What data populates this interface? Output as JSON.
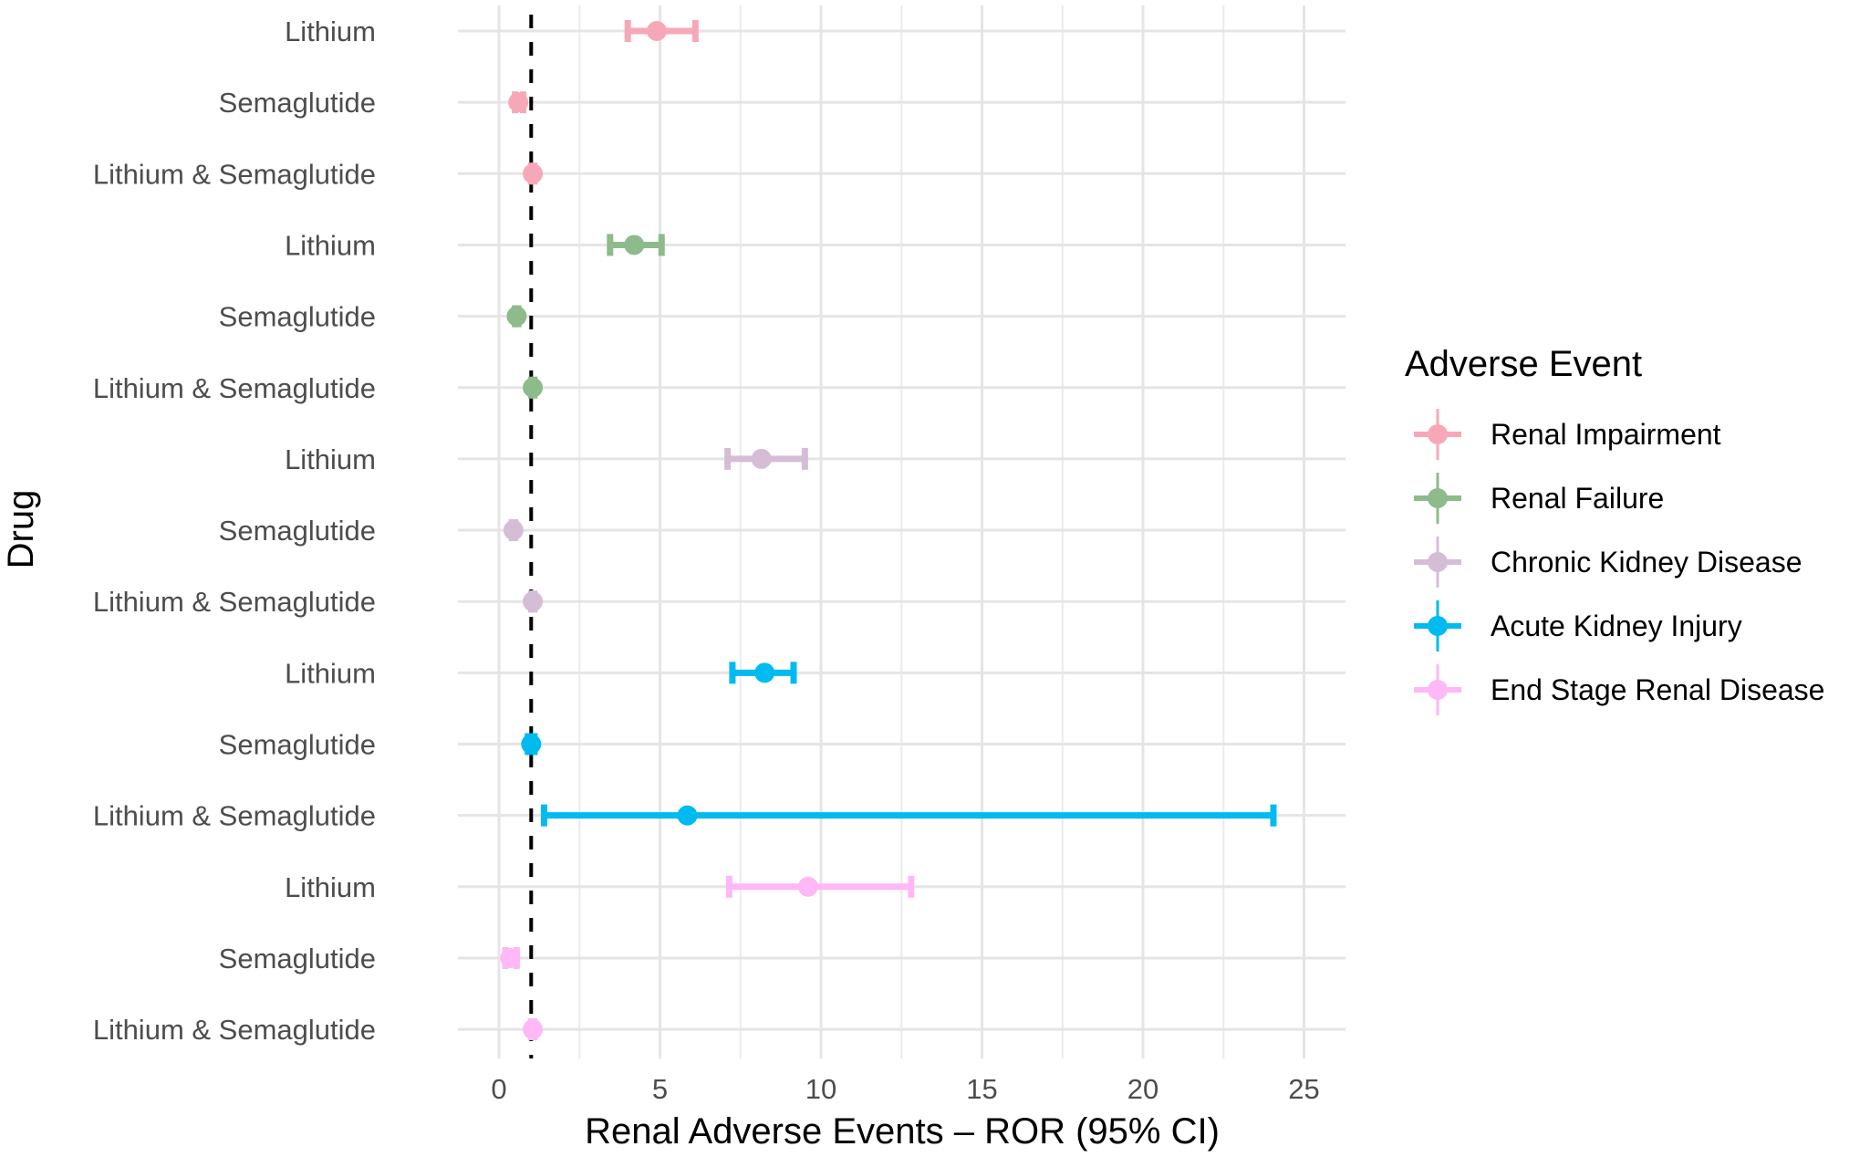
{
  "chart_data": {
    "type": "forest",
    "title": "",
    "xlabel": "Renal Adverse Events – ROR (95% CI)",
    "ylabel": "Drug",
    "xlim": [
      -1.3,
      26.3
    ],
    "xticks": [
      0,
      5,
      10,
      15,
      20,
      25
    ],
    "xtick_labels": [
      "0",
      "5",
      "10",
      "15",
      "20",
      "25"
    ],
    "reference_line": 1,
    "grid": true,
    "legend": {
      "title": "Adverse Event",
      "placement": "right",
      "entries": [
        "Renal Impairment",
        "Renal Failure",
        "Chronic Kidney Disease",
        "Acute Kidney Injury",
        "End Stage Renal Disease"
      ]
    },
    "colors": {
      "Renal Impairment": "#F7A8B8",
      "Renal Failure": "#8DBB8B",
      "Chronic Kidney Disease": "#D5BDD6",
      "Acute Kidney Injury": "#00BAF0",
      "End Stage Renal Disease": "#FDB8F5"
    },
    "rows": [
      {
        "drug": "Lithium",
        "event": "Renal Impairment",
        "ror": 4.9,
        "lower": 4.0,
        "upper": 6.1
      },
      {
        "drug": "Semaglutide",
        "event": "Renal Impairment",
        "ror": 0.6,
        "lower": 0.5,
        "upper": 0.75
      },
      {
        "drug": "Lithium & Semaglutide",
        "event": "Renal Impairment",
        "ror": 1.05,
        "lower": 1.0,
        "upper": 1.1
      },
      {
        "drug": "Lithium",
        "event": "Renal Failure",
        "ror": 4.2,
        "lower": 3.45,
        "upper": 5.05
      },
      {
        "drug": "Semaglutide",
        "event": "Renal Failure",
        "ror": 0.55,
        "lower": 0.5,
        "upper": 0.6
      },
      {
        "drug": "Lithium & Semaglutide",
        "event": "Renal Failure",
        "ror": 1.05,
        "lower": 1.0,
        "upper": 1.1
      },
      {
        "drug": "Lithium",
        "event": "Chronic Kidney Disease",
        "ror": 8.15,
        "lower": 7.1,
        "upper": 9.5
      },
      {
        "drug": "Semaglutide",
        "event": "Chronic Kidney Disease",
        "ror": 0.45,
        "lower": 0.4,
        "upper": 0.5
      },
      {
        "drug": "Lithium & Semaglutide",
        "event": "Chronic Kidney Disease",
        "ror": 1.05,
        "lower": 1.0,
        "upper": 1.1
      },
      {
        "drug": "Lithium",
        "event": "Acute Kidney Injury",
        "ror": 8.25,
        "lower": 7.25,
        "upper": 9.15
      },
      {
        "drug": "Semaglutide",
        "event": "Acute Kidney Injury",
        "ror": 1.0,
        "lower": 0.9,
        "upper": 1.1
      },
      {
        "drug": "Lithium & Semaglutide",
        "event": "Acute Kidney Injury",
        "ror": 5.85,
        "lower": 1.4,
        "upper": 24.05
      },
      {
        "drug": "Lithium",
        "event": "End Stage Renal Disease",
        "ror": 9.6,
        "lower": 7.15,
        "upper": 12.8
      },
      {
        "drug": "Semaglutide",
        "event": "End Stage Renal Disease",
        "ror": 0.35,
        "lower": 0.2,
        "upper": 0.55
      },
      {
        "drug": "Lithium & Semaglutide",
        "event": "End Stage Renal Disease",
        "ror": 1.05,
        "lower": 1.0,
        "upper": 1.1
      }
    ]
  }
}
